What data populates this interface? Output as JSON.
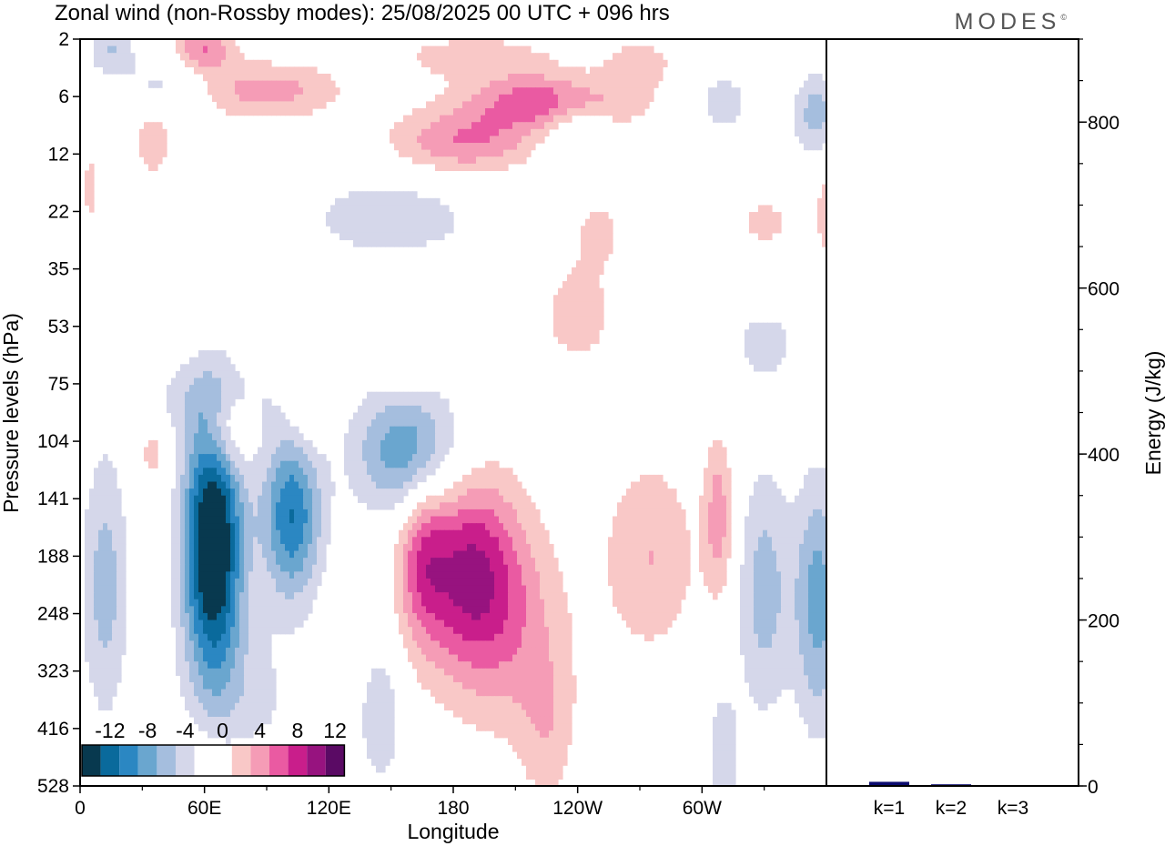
{
  "title": "Zonal wind (non-Rossby modes):  25/08/2025  00 UTC  + 096 hrs",
  "brand": "MODES",
  "brand_mark": "©",
  "colors": {
    "neg": [
      "#08394f",
      "#0a6a9c",
      "#2b87c2",
      "#6aa6cf",
      "#a5bede",
      "#d5d7ea"
    ],
    "pos": [
      "#f9c8c7",
      "#f59cb6",
      "#ea5aa2",
      "#c91e8b",
      "#97137f",
      "#5a0a64"
    ],
    "bar": "#0b0b6e",
    "plot_bg": "#ffffff",
    "white_band": "#ffffff"
  },
  "chart_data": [
    {
      "type": "heatmap",
      "title": "Zonal wind (non-Rossby modes)",
      "xlabel": "Longitude",
      "ylabel": "Pressure levels (hPa)",
      "x_ticks": [
        "0",
        "60E",
        "120E",
        "180",
        "120W",
        "60W"
      ],
      "x_tick_values": [
        0,
        60,
        120,
        180,
        240,
        300
      ],
      "xlim": [
        0,
        360
      ],
      "y_ticks": [
        "2",
        "6",
        "12",
        "22",
        "35",
        "53",
        "75",
        "104",
        "141",
        "188",
        "248",
        "323",
        "416",
        "528"
      ],
      "colorbar": {
        "tick_labels": [
          "-12",
          "-8",
          "-4",
          "0",
          "4",
          "8",
          "12"
        ],
        "levels": [
          -14,
          -12,
          -10,
          -8,
          -6,
          -4,
          -2,
          0,
          2,
          4,
          6,
          8,
          10,
          12,
          14
        ]
      },
      "blobs": [
        {
          "lon": 64,
          "lev": 8.8,
          "rx": 10,
          "ry": 1.6,
          "amp": -16
        },
        {
          "lon": 102,
          "lev": 8.3,
          "rx": 10,
          "ry": 1.0,
          "amp": -10
        },
        {
          "lon": 158,
          "lev": 7.2,
          "rx": 18,
          "ry": 0.8,
          "amp": -8
        },
        {
          "lon": 12,
          "lev": 9.5,
          "rx": 8,
          "ry": 1.6,
          "amp": -5
        },
        {
          "lon": 356,
          "lev": 9.8,
          "rx": 8,
          "ry": 1.5,
          "amp": -7
        },
        {
          "lon": 330,
          "lev": 9.6,
          "rx": 9,
          "ry": 1.5,
          "amp": -5
        },
        {
          "lon": 150,
          "lev": 3.1,
          "rx": 35,
          "ry": 0.6,
          "amp": -3
        },
        {
          "lon": 60,
          "lev": 6.3,
          "rx": 30,
          "ry": 0.5,
          "amp": -2.5
        },
        {
          "lon": 145,
          "lev": 11.8,
          "rx": 7,
          "ry": 0.8,
          "amp": -4
        },
        {
          "lon": 310,
          "lev": 12.5,
          "rx": 6,
          "ry": 1.0,
          "amp": -3
        },
        {
          "lon": 240,
          "lev": 1.5,
          "rx": 12,
          "ry": 0.5,
          "amp": -4
        },
        {
          "lon": 355,
          "lev": 1.3,
          "rx": 8,
          "ry": 0.5,
          "amp": -5
        },
        {
          "lon": 310,
          "lev": 1.1,
          "rx": 10,
          "ry": 0.4,
          "amp": -3
        },
        {
          "lon": 40,
          "lev": 0.8,
          "rx": 15,
          "ry": 0.3,
          "amp": -3
        },
        {
          "lon": 15,
          "lev": 0.2,
          "rx": 8,
          "ry": 0.3,
          "amp": -4
        },
        {
          "lon": 330,
          "lev": 5.3,
          "rx": 15,
          "ry": 0.6,
          "amp": -2.5
        },
        {
          "lon": 80,
          "lev": 11.5,
          "rx": 20,
          "ry": 1.0,
          "amp": -2.5
        },
        {
          "lon": 187,
          "lev": 9.2,
          "rx": 18,
          "ry": 1.2,
          "amp": 9
        },
        {
          "lon": 165,
          "lev": 9.0,
          "rx": 8,
          "ry": 1.0,
          "amp": 5
        },
        {
          "lon": 205,
          "lev": 10.3,
          "rx": 22,
          "ry": 1.3,
          "amp": 4
        },
        {
          "lon": 225,
          "lev": 12.0,
          "rx": 10,
          "ry": 1.0,
          "amp": 3
        },
        {
          "lon": 275,
          "lev": 9.0,
          "rx": 16,
          "ry": 1.2,
          "amp": 4
        },
        {
          "lon": 308,
          "lev": 8.3,
          "rx": 5,
          "ry": 1.0,
          "amp": 5
        },
        {
          "lon": 71,
          "lev": 6.8,
          "rx": 8,
          "ry": 0.5,
          "amp": 5
        },
        {
          "lon": 110,
          "lev": 6.4,
          "rx": 8,
          "ry": 0.5,
          "amp": 3
        },
        {
          "lon": 35,
          "lev": 7.1,
          "rx": 6,
          "ry": 0.5,
          "amp": 3
        },
        {
          "lon": 240,
          "lev": 4.8,
          "rx": 14,
          "ry": 0.7,
          "amp": 3
        },
        {
          "lon": 228,
          "lev": 1.1,
          "rx": 28,
          "ry": 0.35,
          "amp": 8
        },
        {
          "lon": 185,
          "lev": 1.8,
          "rx": 25,
          "ry": 0.4,
          "amp": 6
        },
        {
          "lon": 90,
          "lev": 0.9,
          "rx": 25,
          "ry": 0.35,
          "amp": 5
        },
        {
          "lon": 60,
          "lev": 0.15,
          "rx": 10,
          "ry": 0.3,
          "amp": 6
        },
        {
          "lon": 190,
          "lev": 0.3,
          "rx": 30,
          "ry": 0.3,
          "amp": 3
        },
        {
          "lon": 270,
          "lev": 0.4,
          "rx": 12,
          "ry": 0.3,
          "amp": 3
        },
        {
          "lon": 35,
          "lev": 1.8,
          "rx": 8,
          "ry": 0.5,
          "amp": 3
        },
        {
          "lon": 250,
          "lev": 3.3,
          "rx": 10,
          "ry": 0.5,
          "amp": 2.5
        },
        {
          "lon": 330,
          "lev": 3.2,
          "rx": 12,
          "ry": 0.4,
          "amp": 2.5
        },
        {
          "lon": 362,
          "lev": 3.0,
          "rx": 6,
          "ry": 0.7,
          "amp": 3
        },
        {
          "lon": 5,
          "lev": 2.6,
          "rx": 4,
          "ry": 0.6,
          "amp": 2.5
        },
        {
          "lon": 60,
          "lev": 13.0,
          "rx": 15,
          "ry": 0.7,
          "amp": 2.5
        },
        {
          "lon": 155,
          "lev": 5.5,
          "rx": 8,
          "ry": 0.5,
          "amp": 2.5
        }
      ]
    },
    {
      "type": "bar",
      "categories": [
        "k=1",
        "k=2",
        "k=3"
      ],
      "values": [
        5,
        2,
        1
      ],
      "ylabel": "Energy (J/kg)",
      "ylim": [
        0,
        900
      ],
      "y_ticks": [
        0,
        200,
        400,
        600,
        800
      ],
      "y_tick_labels": [
        "0",
        "200",
        "400",
        "600",
        "800"
      ],
      "y_minor_step": 50
    }
  ]
}
